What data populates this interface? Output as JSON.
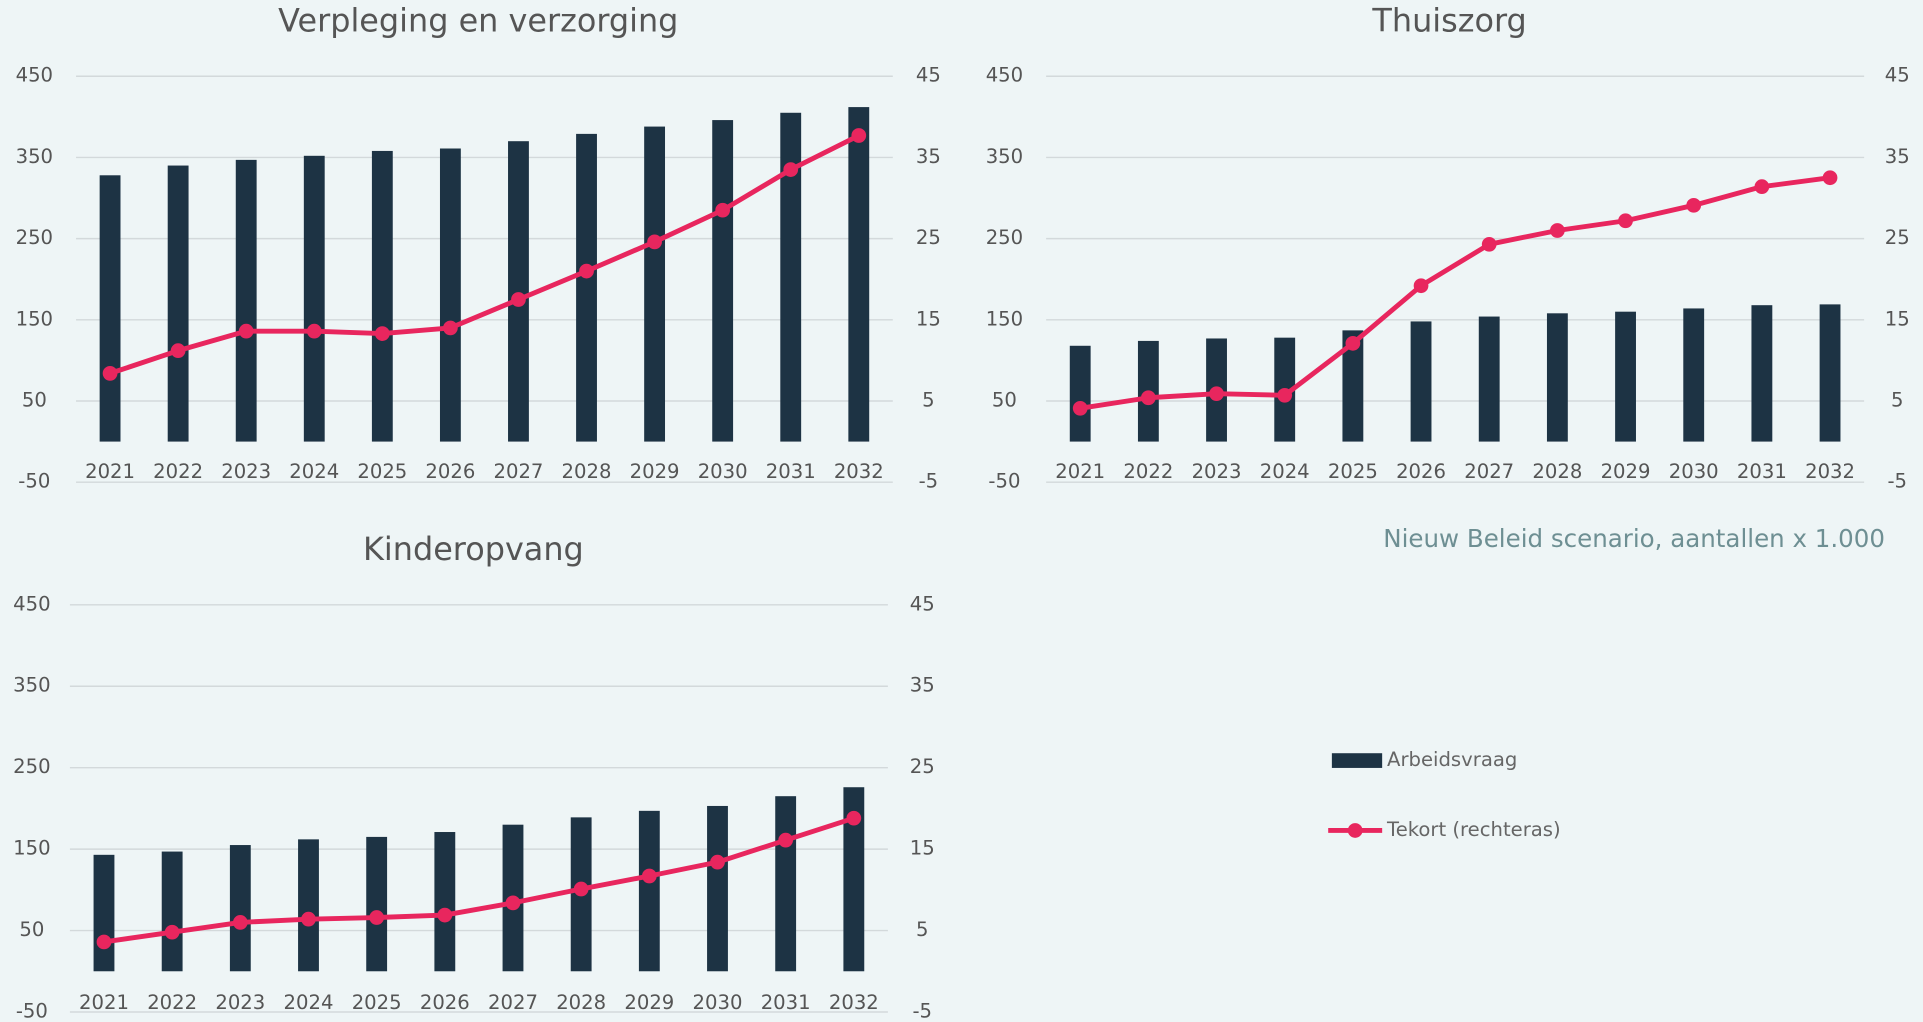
{
  "chart_data": [
    {
      "type": "bar_line",
      "title": "Verpleging en verzorging",
      "categories": [
        "2021",
        "2022",
        "2023",
        "2024",
        "2025",
        "2026",
        "2027",
        "2028",
        "2029",
        "2030",
        "2031",
        "2032"
      ],
      "series": [
        {
          "name": "Arbeidsvraag",
          "type": "bar",
          "color": "#1d3344",
          "values": [
            328,
            340,
            347,
            352,
            358,
            361,
            370,
            379,
            388,
            396,
            405,
            412
          ]
        },
        {
          "name": "Tekort (rechteras)",
          "type": "line",
          "axis": "y2",
          "color": "#e8265e",
          "values": [
            8.4,
            11.2,
            13.6,
            13.6,
            13.3,
            14.0,
            17.5,
            21.0,
            24.6,
            28.5,
            33.5,
            37.7
          ]
        }
      ],
      "ylim": [
        -50,
        450
      ],
      "yticks": [
        -50,
        50,
        150,
        250,
        350,
        450
      ],
      "y2lim": [
        -5,
        45
      ],
      "y2ticks": [
        -5,
        5,
        15,
        25,
        35,
        45
      ],
      "grid": true
    },
    {
      "type": "bar_line",
      "title": "Thuiszorg",
      "categories": [
        "2021",
        "2022",
        "2023",
        "2024",
        "2025",
        "2026",
        "2027",
        "2028",
        "2029",
        "2030",
        "2031",
        "2032"
      ],
      "series": [
        {
          "type": "bar",
          "color": "#1d3344",
          "values": [
            118,
            124,
            127,
            128,
            137,
            148,
            154,
            158,
            160,
            164,
            168,
            169
          ]
        },
        {
          "type": "line",
          "axis": "y2",
          "color": "#e8265e",
          "values": [
            4.1,
            5.4,
            5.9,
            5.7,
            12.1,
            19.2,
            24.3,
            26.0,
            27.2,
            29.1,
            31.4,
            32.5
          ]
        }
      ],
      "ylim": [
        -50,
        450
      ],
      "yticks": [
        -50,
        50,
        150,
        250,
        350,
        450
      ],
      "y2lim": [
        -5,
        45
      ],
      "y2ticks": [
        -5,
        5,
        15,
        25,
        35,
        45
      ],
      "grid": true
    },
    {
      "type": "bar_line",
      "title": "Kinderopvang",
      "categories": [
        "2021",
        "2022",
        "2023",
        "2024",
        "2025",
        "2026",
        "2027",
        "2028",
        "2029",
        "2030",
        "2031",
        "2032"
      ],
      "series": [
        {
          "type": "bar",
          "color": "#1d3344",
          "values": [
            143,
            147,
            155,
            162,
            165,
            171,
            180,
            189,
            197,
            203,
            215,
            226
          ]
        },
        {
          "type": "line",
          "axis": "y2",
          "color": "#e8265e",
          "values": [
            3.6,
            4.8,
            6.0,
            6.4,
            6.6,
            6.9,
            8.4,
            10.1,
            11.7,
            13.4,
            16.1,
            18.8
          ]
        }
      ],
      "ylim": [
        -50,
        450
      ],
      "yticks": [
        -50,
        50,
        150,
        250,
        350,
        450
      ],
      "y2lim": [
        -5,
        45
      ],
      "y2ticks": [
        -5,
        5,
        15,
        25,
        35,
        45
      ],
      "grid": true
    }
  ],
  "note": "Nieuw Beleid scenario, aantallen x 1.000"
}
